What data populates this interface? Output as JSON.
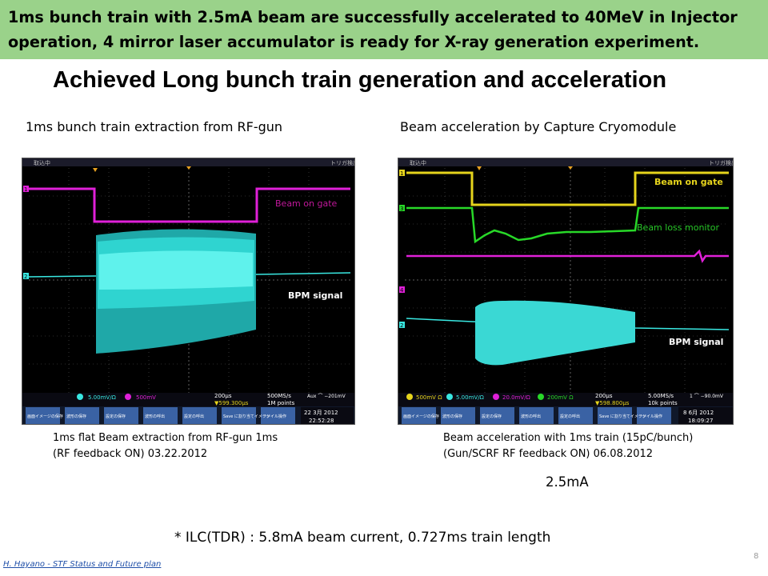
{
  "banner": {
    "text": "1ms bunch train with 2.5mA beam are successfully accelerated to 40MeV in Injector operation, 4 mirror laser accumulator is ready for X-ray generation experiment."
  },
  "title": "Achieved Long bunch train generation and acceleration",
  "left": {
    "subtitle": "1ms bunch train extraction from RF-gun",
    "scope": {
      "top_status_left": "取込中",
      "top_status_right": "トリガ検出",
      "channel_markers": [
        "1",
        "2"
      ],
      "label_gate": "Beam on gate",
      "label_bpm": "BPM signal",
      "ch2_setting": "5.00mV/Ω",
      "ch_m_setting": "500mV",
      "timebase": "200μs",
      "trigger_delay": "▼599.300μs",
      "sample_rate": "500MS/s",
      "record_length": "1M points",
      "trigger_info": "Aux  ⌒ −201mV",
      "date_day": "22 3月 2012",
      "date_time": "22:52:28",
      "buttons": [
        "画面イメージの保存",
        "波形の保存",
        "設定の保存",
        "波形の呼出",
        "設定の呼出",
        "Save に割り当てイメージ",
        "ファイル操作"
      ]
    },
    "caption_line1": "1ms flat Beam extraction from RF-gun 1ms",
    "caption_line2": "(RF feedback ON) 03.22.2012"
  },
  "right": {
    "subtitle": "Beam acceleration by Capture Cryomodule",
    "scope": {
      "top_status_left": "取込中",
      "top_status_right": "トリガ検出",
      "channel_markers": [
        "1",
        "3",
        "4",
        "2"
      ],
      "label_gate": "Beam on gate",
      "label_loss": "Beam loss monitor",
      "label_bpm": "BPM signal",
      "ch1_setting": "500mV Ω",
      "ch2_setting": "5.00mV/Ω",
      "ch3_setting": "20.0mV/Ω",
      "ch4_setting": "200mV Ω",
      "timebase": "200μs",
      "trigger_delay": "▼598.800μs",
      "sample_rate": "5.00MS/s",
      "record_length": "10k points",
      "trigger_info": "1  ⌒ −90.0mV",
      "date_day": "8 6月 2012",
      "date_time": "18:09:27",
      "buttons": [
        "画面イメージの保存",
        "波形の保存",
        "設定の保存",
        "波形の呼出",
        "設定の呼出",
        "Save に割り当てイメージ",
        "ファイル操作"
      ]
    },
    "caption_line1": "Beam acceleration with 1ms  train (15pC/bunch)",
    "caption_line2": "(Gun/SCRF RF feedback ON) 06.08.2012",
    "current": "2.5mA"
  },
  "footnote": "* ILC(TDR) : 5.8mA beam current, 0.727ms train length",
  "author": "H. Hayano - STF Status and Future plan",
  "page_number": "8",
  "colors": {
    "banner_bg": "#9ad28a",
    "magenta": "#e020d8",
    "cyan": "#39e8e2",
    "green": "#28d828",
    "yellow": "#e6d41c",
    "button_bg": "#3a62a4",
    "author_blue": "#1f4fa8"
  }
}
